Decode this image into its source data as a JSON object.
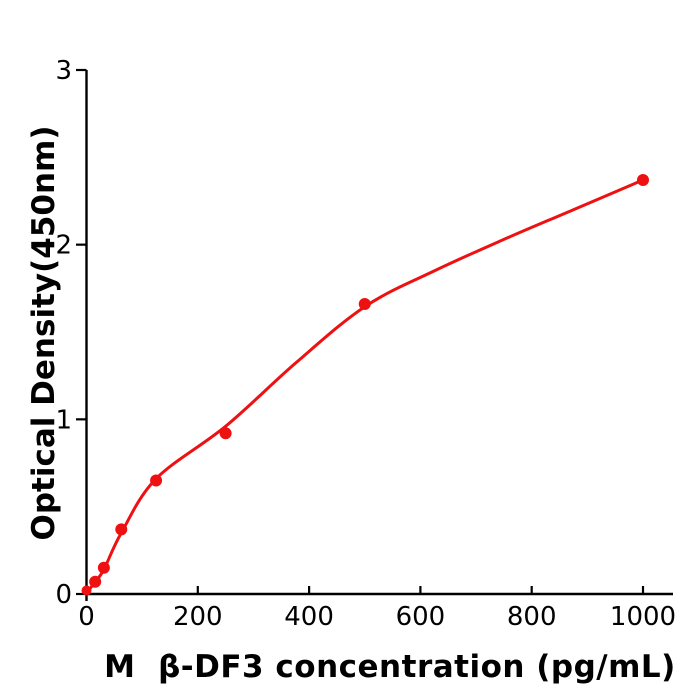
{
  "chart_data": {
    "type": "scatter",
    "title": "",
    "xlabel": "M  β-DF3 concentration (pg/mL)",
    "ylabel": "Optical Density(450nm)",
    "xlim": [
      0,
      1055
    ],
    "ylim": [
      0,
      3
    ],
    "x_ticks": [
      0,
      200,
      400,
      600,
      800,
      1000
    ],
    "x_tick_labels": [
      "0",
      "200",
      "400",
      "600",
      "800",
      "1000"
    ],
    "y_ticks": [
      0,
      1,
      2,
      3
    ],
    "y_tick_labels": [
      "0",
      "1",
      "2",
      "3"
    ],
    "grid": false,
    "legend": "none",
    "colors": {
      "points": "#ee1111",
      "curve": "#ee1111",
      "axis": "#000000",
      "background": "#ffffff"
    },
    "series": [
      {
        "name": "standard-data-points",
        "type": "scatter",
        "points": [
          [
            0,
            0.02
          ],
          [
            15.6,
            0.07
          ],
          [
            31.2,
            0.15
          ],
          [
            62.5,
            0.37
          ],
          [
            125,
            0.65
          ],
          [
            250,
            0.92
          ],
          [
            500,
            1.66
          ],
          [
            1000,
            2.37
          ]
        ]
      },
      {
        "name": "fit-curve",
        "type": "line",
        "points": [
          [
            0,
            0.005
          ],
          [
            15.6,
            0.07
          ],
          [
            31.2,
            0.14
          ],
          [
            62.5,
            0.35
          ],
          [
            125,
            0.66
          ],
          [
            250,
            0.96
          ],
          [
            375,
            1.32
          ],
          [
            500,
            1.645
          ],
          [
            625,
            1.85
          ],
          [
            750,
            2.03
          ],
          [
            875,
            2.2
          ],
          [
            1000,
            2.37
          ]
        ]
      }
    ]
  }
}
